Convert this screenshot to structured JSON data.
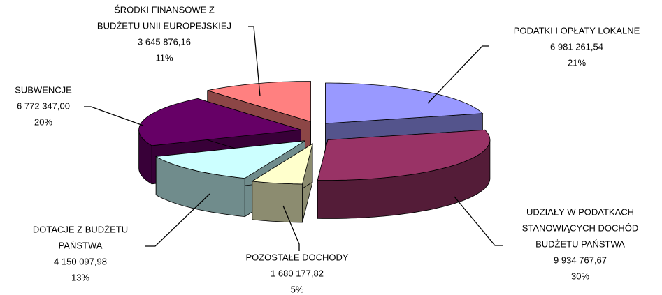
{
  "chart_data": {
    "type": "pie3d",
    "categories": [
      [
        "PODATKI I OPŁATY LOKALNE"
      ],
      [
        "UDZIAŁY W PODATKACH",
        "STANOWIĄCYCH DOCHÓD",
        "BUDŻETU PAŃSTWA"
      ],
      [
        "POZOSTAŁE DOCHODY"
      ],
      [
        "DOTACJE Z BUDŻETU",
        "PAŃSTWA"
      ],
      [
        "SUBWENCJE"
      ],
      [
        "ŚRODKI FINANSOWE Z",
        "BUDŻETU UNII EUROPEJSKIEJ"
      ]
    ],
    "values": [
      6981261.54,
      9934767.67,
      1680177.82,
      4150097.98,
      6772347.0,
      3645876.16
    ],
    "value_labels": [
      "6 981 261,54",
      "9 934 767,67",
      "1 680 177,82",
      "4 150 097,98",
      "6 772 347,00",
      "3 645 876,16"
    ],
    "percents": [
      21,
      30,
      5,
      13,
      20,
      11
    ],
    "percent_labels": [
      "21%",
      "30%",
      "5%",
      "13%",
      "20%",
      "11%"
    ],
    "colors": [
      "#9999ff",
      "#993366",
      "#ffffcc",
      "#ccffff",
      "#660066",
      "#ff8080"
    ]
  }
}
